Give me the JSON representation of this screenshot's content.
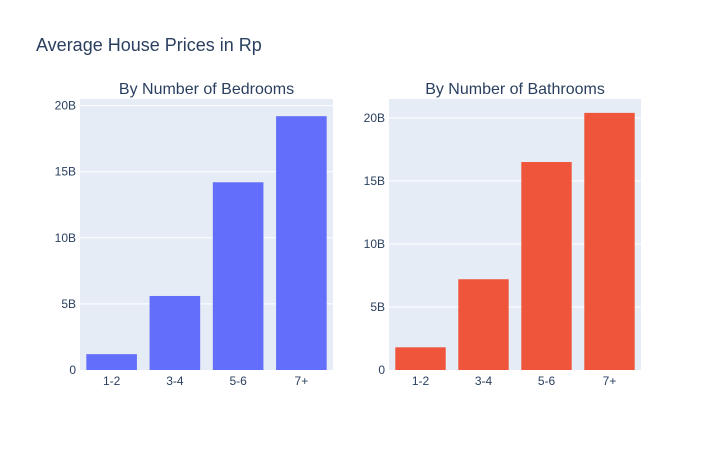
{
  "title": "Average House Prices in Rp",
  "chart_data": [
    {
      "type": "bar",
      "title": "By Number of Bedrooms",
      "categories": [
        "1-2",
        "3-4",
        "5-6",
        "7+"
      ],
      "values": [
        1.2,
        5.6,
        14.2,
        19.2
      ],
      "unit": "B",
      "ylim": [
        0,
        20.5
      ],
      "yticks": [
        0,
        5,
        10,
        15,
        20
      ],
      "ytick_labels": [
        "0",
        "5B",
        "10B",
        "15B",
        "20B"
      ],
      "color": "#636efa",
      "grid": true
    },
    {
      "type": "bar",
      "title": "By Number of Bathrooms",
      "categories": [
        "1-2",
        "3-4",
        "5-6",
        "7+"
      ],
      "values": [
        1.8,
        7.2,
        16.5,
        20.4
      ],
      "unit": "B",
      "ylim": [
        0,
        21.5
      ],
      "yticks": [
        0,
        5,
        10,
        15,
        20
      ],
      "ytick_labels": [
        "0",
        "5B",
        "10B",
        "15B",
        "20B"
      ],
      "color": "#ef553b",
      "grid": true
    }
  ]
}
